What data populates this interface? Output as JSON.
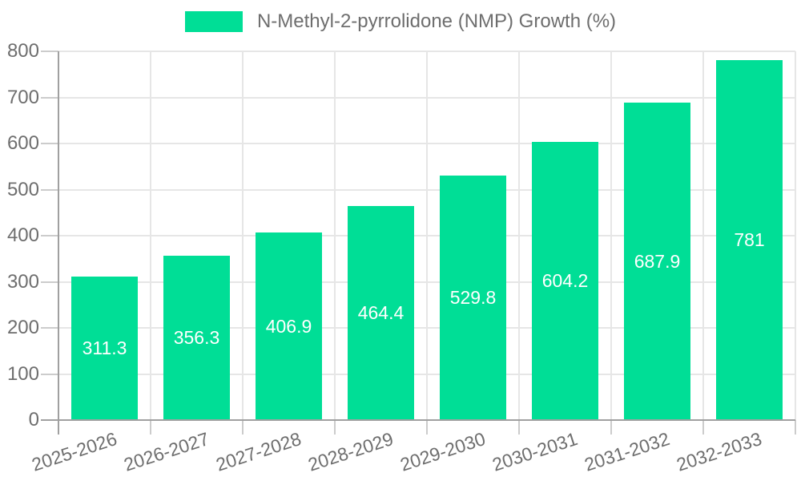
{
  "chart_data": {
    "type": "bar",
    "legend": "N-Methyl-2-pyrrolidone (NMP) Growth (%)",
    "legend_position": "top",
    "categories": [
      "2025-2026",
      "2026-2027",
      "2027-2028",
      "2028-2029",
      "2029-2030",
      "2030-2031",
      "2031-2032",
      "2032-2033"
    ],
    "series": [
      {
        "name": "N-Methyl-2-pyrrolidone (NMP) Growth (%)",
        "values": [
          311.3,
          356.3,
          406.9,
          464.4,
          529.8,
          604.2,
          687.9,
          781
        ],
        "value_labels": [
          "311.3",
          "356.3",
          "406.9",
          "464.4",
          "529.8",
          "604.2",
          "687.9",
          "781"
        ]
      }
    ],
    "xlabel": "",
    "ylabel": "",
    "ylim": [
      0,
      800
    ],
    "yticks": [
      "0",
      "100",
      "200",
      "300",
      "400",
      "500",
      "600",
      "700",
      "800"
    ],
    "grid": true,
    "colors": {
      "bar": "#00de96",
      "bar_value_text": "#ffffff",
      "grid_line": "#e6e6e6",
      "tick_mark": "#cccccc",
      "axis_line": "#a0a0a0",
      "tick_text": "#6e6e6e",
      "legend_text": "#6e6e6e",
      "background": "#ffffff"
    }
  }
}
